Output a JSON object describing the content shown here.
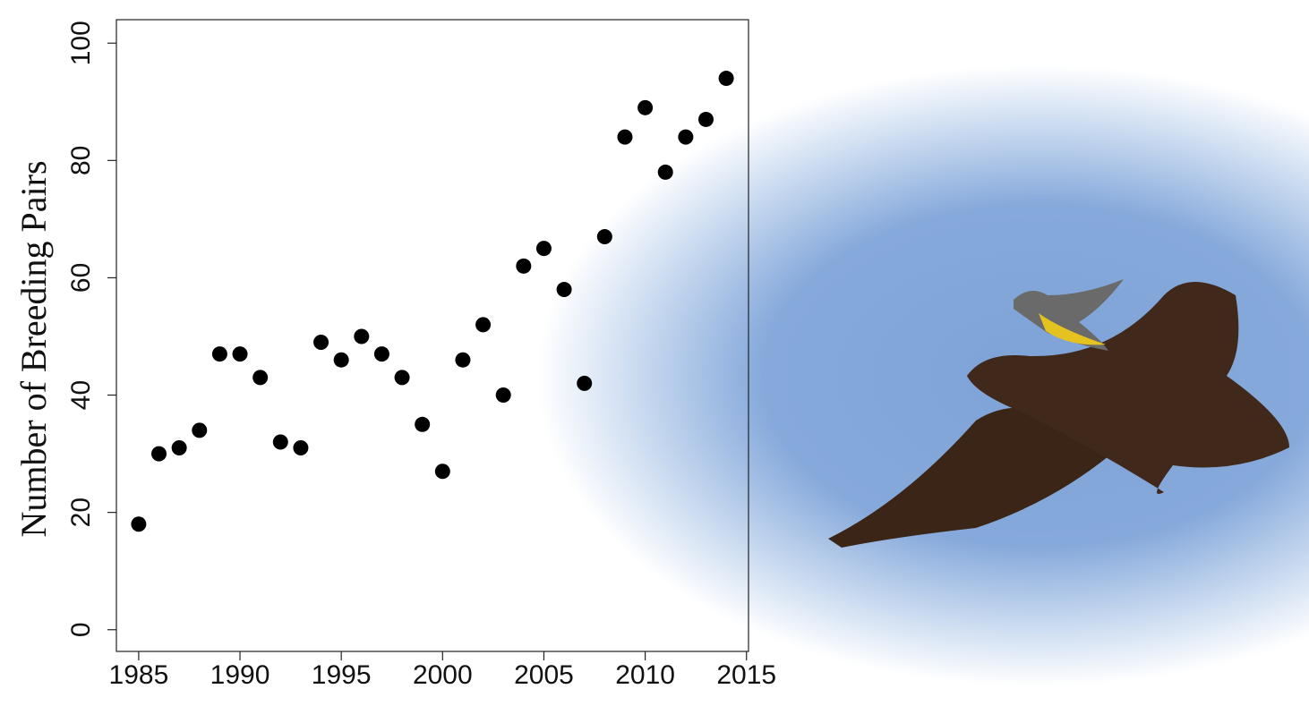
{
  "chart_data": {
    "type": "scatter",
    "y_label": "Number of Breeding Pairs",
    "x": [
      1985,
      1986,
      1987,
      1988,
      1989,
      1990,
      1991,
      1992,
      1993,
      1994,
      1995,
      1996,
      1997,
      1998,
      1999,
      2000,
      2001,
      2002,
      2003,
      2004,
      2005,
      2006,
      2007,
      2008,
      2009,
      2010,
      2011,
      2012,
      2013,
      2014
    ],
    "values": [
      18,
      30,
      31,
      34,
      47,
      47,
      43,
      32,
      31,
      49,
      46,
      50,
      47,
      43,
      35,
      27,
      46,
      52,
      40,
      62,
      65,
      58,
      42,
      67,
      84,
      89,
      78,
      84,
      87,
      94
    ],
    "color": "#000000",
    "xlim": [
      1983.9,
      2015.1
    ],
    "ylim": [
      -3.7,
      104
    ],
    "xticks": [
      1985,
      1990,
      1995,
      2000,
      2005,
      2010,
      2015
    ],
    "yticks": [
      0,
      20,
      40,
      60,
      80,
      100
    ]
  }
}
